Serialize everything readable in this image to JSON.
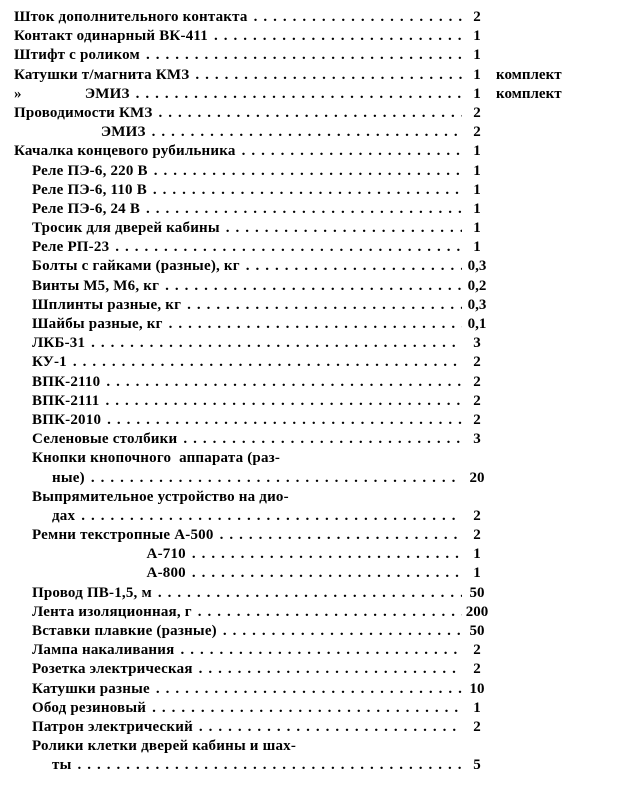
{
  "items": [
    {
      "label": "Шток дополнительного контакта",
      "value": "2",
      "unit": "",
      "indent": 0
    },
    {
      "label": "Контакт одинарный ВК-411",
      "value": "1",
      "unit": "",
      "indent": 0
    },
    {
      "label": "Штифт с роликом",
      "value": "1",
      "unit": "",
      "indent": 0
    },
    {
      "label": "Катушки т/магнита КМЗ",
      "value": "1",
      "unit": "комплект",
      "indent": 0
    },
    {
      "label": "»                ЭМИЗ",
      "value": "1",
      "unit": "комплект",
      "indent": 0
    },
    {
      "label": "Проводимости КМЗ",
      "value": "2",
      "unit": "",
      "indent": 0
    },
    {
      "label": "                      ЭМИЗ",
      "value": "2",
      "unit": "",
      "indent": 0
    },
    {
      "label": "Качалка концевого рубильника",
      "value": "1",
      "unit": "",
      "indent": 0
    },
    {
      "label": "Реле ПЭ-6, 220 В",
      "value": "1",
      "unit": "",
      "indent": 1
    },
    {
      "label": "Реле ПЭ-6, 110 В",
      "value": "1",
      "unit": "",
      "indent": 1
    },
    {
      "label": "Реле ПЭ-6, 24 В",
      "value": "1",
      "unit": "",
      "indent": 1
    },
    {
      "label": "Тросик для дверей кабины",
      "value": "1",
      "unit": "",
      "indent": 1
    },
    {
      "label": "Реле РП-23",
      "value": "1",
      "unit": "",
      "indent": 1
    },
    {
      "label": "Болты с гайками (разные), кг",
      "value": "0,3",
      "unit": "",
      "indent": 1
    },
    {
      "label": "Винты М5, М6, кг",
      "value": "0,2",
      "unit": "",
      "indent": 1
    },
    {
      "label": "Шплинты разные, кг",
      "value": "0,3",
      "unit": "",
      "indent": 1
    },
    {
      "label": "Шайбы разные, кг",
      "value": "0,1",
      "unit": "",
      "indent": 1
    },
    {
      "label": "ЛКБ-31",
      "value": "3",
      "unit": "",
      "indent": 1
    },
    {
      "label": "КУ-1",
      "value": "2",
      "unit": "",
      "indent": 1
    },
    {
      "label": "ВПК-2110",
      "value": "2",
      "unit": "",
      "indent": 1
    },
    {
      "label": "ВПК-2111",
      "value": "2",
      "unit": "",
      "indent": 1
    },
    {
      "label": "ВПК-2010",
      "value": "2",
      "unit": "",
      "indent": 1
    },
    {
      "label": "Селеновые столбики",
      "value": "3",
      "unit": "",
      "indent": 1
    },
    {
      "label": "Кнопки кнопочного  аппарата (раз-",
      "value": "",
      "unit": "",
      "indent": 1,
      "nodots": true
    },
    {
      "label": "ные)",
      "value": "20",
      "unit": "",
      "indent": 1,
      "deeper": true
    },
    {
      "label": "Выпрямительное устройство на дио-",
      "value": "",
      "unit": "",
      "indent": 1,
      "nodots": true
    },
    {
      "label": "дах",
      "value": "2",
      "unit": "",
      "indent": 1,
      "deeper": true
    },
    {
      "label": "Ремни текстропные А-500",
      "value": "2",
      "unit": "",
      "indent": 1
    },
    {
      "label": "                             А-710",
      "value": "1",
      "unit": "",
      "indent": 1
    },
    {
      "label": "                             А-800",
      "value": "1",
      "unit": "",
      "indent": 1
    },
    {
      "label": "Провод ПВ-1,5, м",
      "value": "50",
      "unit": "",
      "indent": 1
    },
    {
      "label": "Лента изоляционная, г",
      "value": "200",
      "unit": "",
      "indent": 1
    },
    {
      "label": "Вставки плавкие (разные)",
      "value": "50",
      "unit": "",
      "indent": 1
    },
    {
      "label": "Лампа накаливания",
      "value": "2",
      "unit": "",
      "indent": 1
    },
    {
      "label": "Розетка электрическая",
      "value": "2",
      "unit": "",
      "indent": 1
    },
    {
      "label": "Катушки разные",
      "value": "10",
      "unit": "",
      "indent": 1
    },
    {
      "label": "Обод резиновый",
      "value": "1",
      "unit": "",
      "indent": 1
    },
    {
      "label": "Патрон электрический",
      "value": "2",
      "unit": "",
      "indent": 1
    },
    {
      "label": "Ролики клетки дверей кабины и шах-",
      "value": "",
      "unit": "",
      "indent": 1,
      "nodots": true
    },
    {
      "label": "ты",
      "value": "5",
      "unit": "",
      "indent": 1,
      "deeper": true
    }
  ]
}
